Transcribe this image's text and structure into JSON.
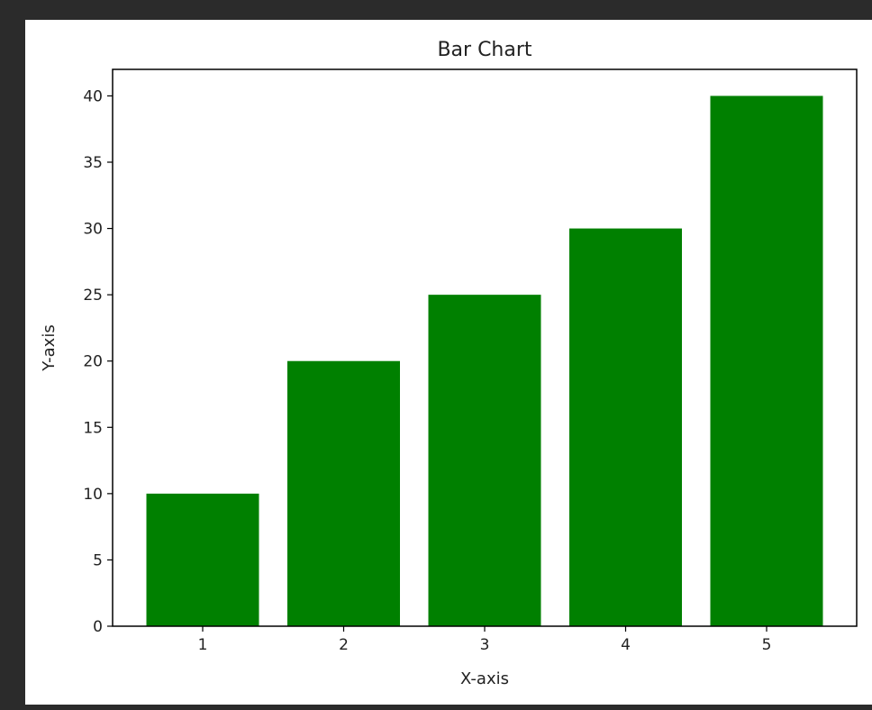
{
  "chart_data": {
    "type": "bar",
    "title": "Bar Chart",
    "xlabel": "X-axis",
    "ylabel": "Y-axis",
    "categories": [
      "1",
      "2",
      "3",
      "4",
      "5"
    ],
    "values": [
      10,
      20,
      25,
      30,
      40
    ],
    "ylim": [
      0,
      42
    ],
    "yticks": [
      0,
      5,
      10,
      15,
      20,
      25,
      30,
      35,
      40
    ],
    "bar_color": "#008000",
    "grid": false,
    "legend": "none"
  }
}
